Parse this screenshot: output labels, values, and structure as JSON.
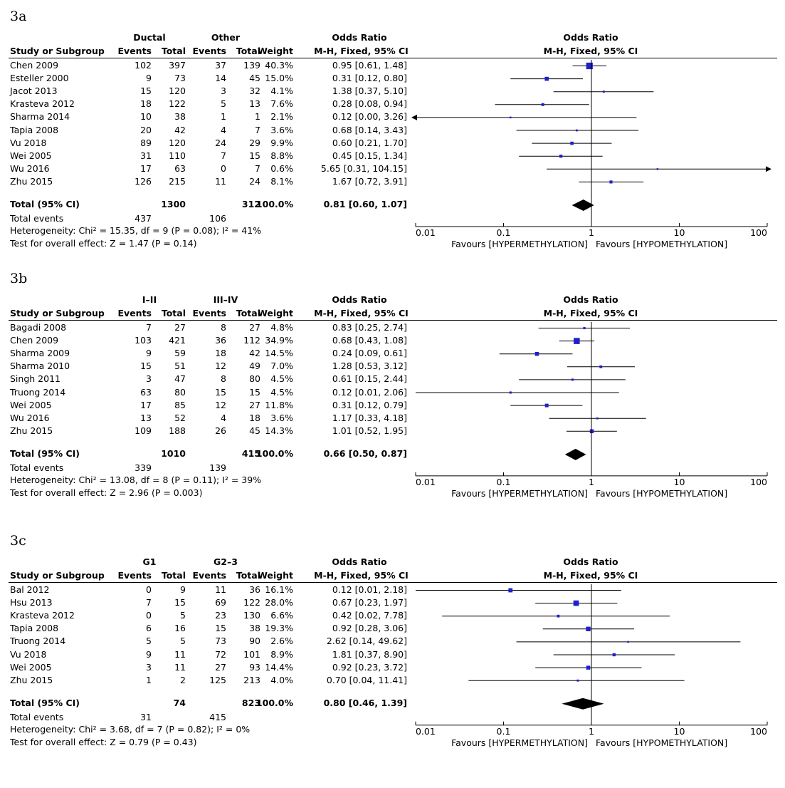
{
  "column_headers": {
    "study": "Study or Subgroup",
    "events": "Events",
    "total": "Total",
    "weight": "Weight",
    "or_title": "Odds Ratio",
    "or_method": "M-H, Fixed, 95% CI",
    "total_row_label": "Total (95% CI)",
    "total_events_label": "Total events"
  },
  "axis": {
    "ticks": [
      "0.01",
      "0.1",
      "1",
      "10",
      "100"
    ],
    "favours_left": "Favours [HYPERMETHYLATION]",
    "favours_right": "Favours [HYPOMETHYLATION]"
  },
  "panels": [
    {
      "label": "3a",
      "group1": "Ductal",
      "group2": "Other",
      "studies": [
        {
          "name": "Chen 2009",
          "e1": "102",
          "t1": "397",
          "e2": "37",
          "t2": "139",
          "weight": "40.3%",
          "ci": "0.95 [0.61, 1.48]"
        },
        {
          "name": "Esteller 2000",
          "e1": "9",
          "t1": "73",
          "e2": "14",
          "t2": "45",
          "weight": "15.0%",
          "ci": "0.31 [0.12, 0.80]"
        },
        {
          "name": "Jacot 2013",
          "e1": "15",
          "t1": "120",
          "e2": "3",
          "t2": "32",
          "weight": "4.1%",
          "ci": "1.38 [0.37, 5.10]"
        },
        {
          "name": "Krasteva 2012",
          "e1": "18",
          "t1": "122",
          "e2": "5",
          "t2": "13",
          "weight": "7.6%",
          "ci": "0.28 [0.08, 0.94]"
        },
        {
          "name": "Sharma 2014",
          "e1": "10",
          "t1": "38",
          "e2": "1",
          "t2": "1",
          "weight": "2.1%",
          "ci": "0.12 [0.00, 3.26]"
        },
        {
          "name": "Tapia 2008",
          "e1": "20",
          "t1": "42",
          "e2": "4",
          "t2": "7",
          "weight": "3.6%",
          "ci": "0.68 [0.14, 3.43]"
        },
        {
          "name": "Vu 2018",
          "e1": "89",
          "t1": "120",
          "e2": "24",
          "t2": "29",
          "weight": "9.9%",
          "ci": "0.60 [0.21, 1.70]"
        },
        {
          "name": "Wei 2005",
          "e1": "31",
          "t1": "110",
          "e2": "7",
          "t2": "15",
          "weight": "8.8%",
          "ci": "0.45 [0.15, 1.34]"
        },
        {
          "name": "Wu 2016",
          "e1": "17",
          "t1": "63",
          "e2": "0",
          "t2": "7",
          "weight": "0.6%",
          "ci": "5.65 [0.31, 104.15]"
        },
        {
          "name": "Zhu 2015",
          "e1": "126",
          "t1": "215",
          "e2": "11",
          "t2": "24",
          "weight": "8.1%",
          "ci": "1.67 [0.72, 3.91]"
        }
      ],
      "total": {
        "t1": "1300",
        "t2": "312",
        "weight": "100.0%",
        "ci": "0.81 [0.60, 1.07]",
        "e1": "437",
        "e2": "106"
      },
      "heterogeneity": "Heterogeneity: Chi² = 15.35, df = 9 (P = 0.08); I² = 41%",
      "overall": "Test for overall effect: Z = 1.47 (P = 0.14)"
    },
    {
      "label": "3b",
      "group1": "I–II",
      "group2": "III–IV",
      "studies": [
        {
          "name": "Bagadi 2008",
          "e1": "7",
          "t1": "27",
          "e2": "8",
          "t2": "27",
          "weight": "4.8%",
          "ci": "0.83 [0.25, 2.74]"
        },
        {
          "name": "Chen 2009",
          "e1": "103",
          "t1": "421",
          "e2": "36",
          "t2": "112",
          "weight": "34.9%",
          "ci": "0.68 [0.43, 1.08]"
        },
        {
          "name": "Sharma 2009",
          "e1": "9",
          "t1": "59",
          "e2": "18",
          "t2": "42",
          "weight": "14.5%",
          "ci": "0.24 [0.09, 0.61]"
        },
        {
          "name": "Sharma 2010",
          "e1": "15",
          "t1": "51",
          "e2": "12",
          "t2": "49",
          "weight": "7.0%",
          "ci": "1.28 [0.53, 3.12]"
        },
        {
          "name": "Singh 2011",
          "e1": "3",
          "t1": "47",
          "e2": "8",
          "t2": "80",
          "weight": "4.5%",
          "ci": "0.61 [0.15, 2.44]"
        },
        {
          "name": "Truong 2014",
          "e1": "63",
          "t1": "80",
          "e2": "15",
          "t2": "15",
          "weight": "4.5%",
          "ci": "0.12 [0.01, 2.06]"
        },
        {
          "name": "Wei 2005",
          "e1": "17",
          "t1": "85",
          "e2": "12",
          "t2": "27",
          "weight": "11.8%",
          "ci": "0.31 [0.12, 0.79]"
        },
        {
          "name": "Wu 2016",
          "e1": "13",
          "t1": "52",
          "e2": "4",
          "t2": "18",
          "weight": "3.6%",
          "ci": "1.17 [0.33, 4.18]"
        },
        {
          "name": "Zhu 2015",
          "e1": "109",
          "t1": "188",
          "e2": "26",
          "t2": "45",
          "weight": "14.3%",
          "ci": "1.01 [0.52, 1.95]"
        }
      ],
      "total": {
        "t1": "1010",
        "t2": "415",
        "weight": "100.0%",
        "ci": "0.66 [0.50, 0.87]",
        "e1": "339",
        "e2": "139"
      },
      "heterogeneity": "Heterogeneity: Chi² = 13.08, df = 8 (P = 0.11); I² = 39%",
      "overall": "Test for overall effect: Z = 2.96 (P = 0.003)"
    },
    {
      "label": "3c",
      "group1": "G1",
      "group2": "G2–3",
      "studies": [
        {
          "name": "Bal 2012",
          "e1": "0",
          "t1": "9",
          "e2": "11",
          "t2": "36",
          "weight": "16.1%",
          "ci": "0.12 [0.01, 2.18]"
        },
        {
          "name": "Hsu 2013",
          "e1": "7",
          "t1": "15",
          "e2": "69",
          "t2": "122",
          "weight": "28.0%",
          "ci": "0.67 [0.23, 1.97]"
        },
        {
          "name": "Krasteva 2012",
          "e1": "0",
          "t1": "5",
          "e2": "23",
          "t2": "130",
          "weight": "6.6%",
          "ci": "0.42 [0.02, 7.78]"
        },
        {
          "name": "Tapia 2008",
          "e1": "6",
          "t1": "16",
          "e2": "15",
          "t2": "38",
          "weight": "19.3%",
          "ci": "0.92 [0.28, 3.06]"
        },
        {
          "name": "Truong 2014",
          "e1": "5",
          "t1": "5",
          "e2": "73",
          "t2": "90",
          "weight": "2.6%",
          "ci": "2.62 [0.14, 49.62]"
        },
        {
          "name": "Vu 2018",
          "e1": "9",
          "t1": "11",
          "e2": "72",
          "t2": "101",
          "weight": "8.9%",
          "ci": "1.81 [0.37, 8.90]"
        },
        {
          "name": "Wei 2005",
          "e1": "3",
          "t1": "11",
          "e2": "27",
          "t2": "93",
          "weight": "14.4%",
          "ci": "0.92 [0.23, 3.72]"
        },
        {
          "name": "Zhu 2015",
          "e1": "1",
          "t1": "2",
          "e2": "125",
          "t2": "213",
          "weight": "4.0%",
          "ci": "0.70 [0.04, 11.41]"
        }
      ],
      "total": {
        "t1": "74",
        "t2": "823",
        "weight": "100.0%",
        "ci": "0.80 [0.46, 1.39]",
        "e1": "31",
        "e2": "415"
      },
      "heterogeneity": "Heterogeneity: Chi² = 3.68, df = 7 (P = 0.82); I² = 0%",
      "overall": "Test for overall effect: Z = 0.79 (P = 0.43)"
    }
  ],
  "chart_data": [
    {
      "type": "forest",
      "title": "3a",
      "scale": "log",
      "xlim": [
        0.01,
        100
      ],
      "reference_line": 1,
      "points": [
        {
          "study": "Chen 2009",
          "or": 0.95,
          "lower": 0.61,
          "upper": 1.48,
          "weight": 40.3
        },
        {
          "study": "Esteller 2000",
          "or": 0.31,
          "lower": 0.12,
          "upper": 0.8,
          "weight": 15.0
        },
        {
          "study": "Jacot 2013",
          "or": 1.38,
          "lower": 0.37,
          "upper": 5.1,
          "weight": 4.1
        },
        {
          "study": "Krasteva 2012",
          "or": 0.28,
          "lower": 0.08,
          "upper": 0.94,
          "weight": 7.6
        },
        {
          "study": "Sharma 2014",
          "or": 0.12,
          "lower": 0.0,
          "upper": 3.26,
          "weight": 2.1
        },
        {
          "study": "Tapia 2008",
          "or": 0.68,
          "lower": 0.14,
          "upper": 3.43,
          "weight": 3.6
        },
        {
          "study": "Vu 2018",
          "or": 0.6,
          "lower": 0.21,
          "upper": 1.7,
          "weight": 9.9
        },
        {
          "study": "Wei 2005",
          "or": 0.45,
          "lower": 0.15,
          "upper": 1.34,
          "weight": 8.8
        },
        {
          "study": "Wu 2016",
          "or": 5.65,
          "lower": 0.31,
          "upper": 104.15,
          "weight": 0.6
        },
        {
          "study": "Zhu 2015",
          "or": 1.67,
          "lower": 0.72,
          "upper": 3.91,
          "weight": 8.1
        }
      ],
      "pooled": {
        "or": 0.81,
        "lower": 0.6,
        "upper": 1.07
      }
    },
    {
      "type": "forest",
      "title": "3b",
      "scale": "log",
      "xlim": [
        0.01,
        100
      ],
      "reference_line": 1,
      "points": [
        {
          "study": "Bagadi 2008",
          "or": 0.83,
          "lower": 0.25,
          "upper": 2.74,
          "weight": 4.8
        },
        {
          "study": "Chen 2009",
          "or": 0.68,
          "lower": 0.43,
          "upper": 1.08,
          "weight": 34.9
        },
        {
          "study": "Sharma 2009",
          "or": 0.24,
          "lower": 0.09,
          "upper": 0.61,
          "weight": 14.5
        },
        {
          "study": "Sharma 2010",
          "or": 1.28,
          "lower": 0.53,
          "upper": 3.12,
          "weight": 7.0
        },
        {
          "study": "Singh 2011",
          "or": 0.61,
          "lower": 0.15,
          "upper": 2.44,
          "weight": 4.5
        },
        {
          "study": "Truong 2014",
          "or": 0.12,
          "lower": 0.01,
          "upper": 2.06,
          "weight": 4.5
        },
        {
          "study": "Wei 2005",
          "or": 0.31,
          "lower": 0.12,
          "upper": 0.79,
          "weight": 11.8
        },
        {
          "study": "Wu 2016",
          "or": 1.17,
          "lower": 0.33,
          "upper": 4.18,
          "weight": 3.6
        },
        {
          "study": "Zhu 2015",
          "or": 1.01,
          "lower": 0.52,
          "upper": 1.95,
          "weight": 14.3
        }
      ],
      "pooled": {
        "or": 0.66,
        "lower": 0.5,
        "upper": 0.87
      }
    },
    {
      "type": "forest",
      "title": "3c",
      "scale": "log",
      "xlim": [
        0.01,
        100
      ],
      "reference_line": 1,
      "points": [
        {
          "study": "Bal 2012",
          "or": 0.12,
          "lower": 0.01,
          "upper": 2.18,
          "weight": 16.1
        },
        {
          "study": "Hsu 2013",
          "or": 0.67,
          "lower": 0.23,
          "upper": 1.97,
          "weight": 28.0
        },
        {
          "study": "Krasteva 2012",
          "or": 0.42,
          "lower": 0.02,
          "upper": 7.78,
          "weight": 6.6
        },
        {
          "study": "Tapia 2008",
          "or": 0.92,
          "lower": 0.28,
          "upper": 3.06,
          "weight": 19.3
        },
        {
          "study": "Truong 2014",
          "or": 2.62,
          "lower": 0.14,
          "upper": 49.62,
          "weight": 2.6
        },
        {
          "study": "Vu 2018",
          "or": 1.81,
          "lower": 0.37,
          "upper": 8.9,
          "weight": 8.9
        },
        {
          "study": "Wei 2005",
          "or": 0.92,
          "lower": 0.23,
          "upper": 3.72,
          "weight": 14.4
        },
        {
          "study": "Zhu 2015",
          "or": 0.7,
          "lower": 0.04,
          "upper": 11.41,
          "weight": 4.0
        }
      ],
      "pooled": {
        "or": 0.8,
        "lower": 0.46,
        "upper": 1.39
      }
    }
  ],
  "colors": {
    "square": "#1f1fd0",
    "line": "#000000",
    "diamond": "#000000"
  }
}
